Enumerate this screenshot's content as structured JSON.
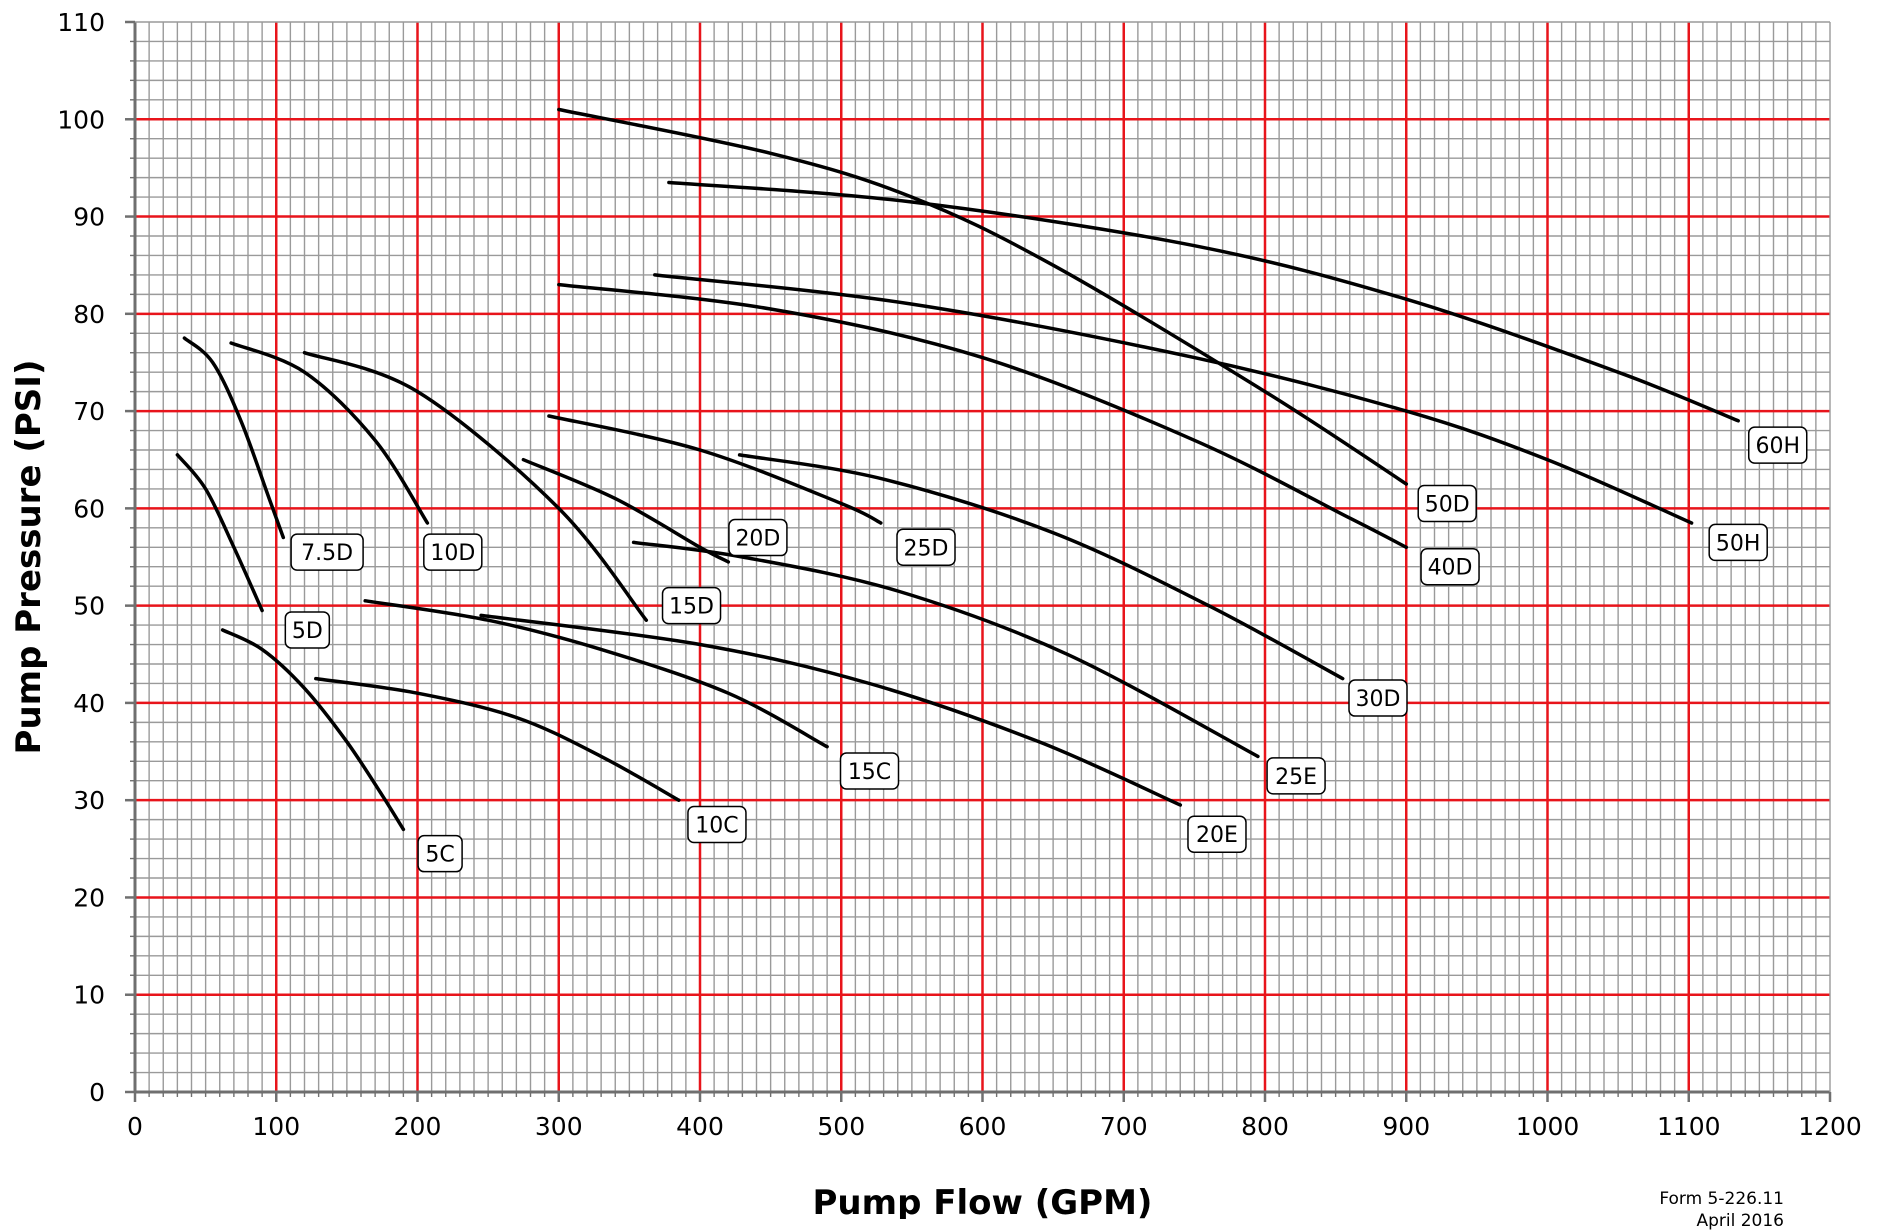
{
  "chart_data": {
    "type": "line",
    "xlabel": "Pump Flow (GPM)",
    "ylabel": "Pump Pressure (PSI)",
    "xlim": [
      0,
      1200
    ],
    "ylim": [
      0,
      110
    ],
    "x_ticks": [
      0,
      100,
      200,
      300,
      400,
      500,
      600,
      700,
      800,
      900,
      1000,
      1100,
      1200
    ],
    "y_ticks": [
      0,
      10,
      20,
      30,
      40,
      50,
      60,
      70,
      80,
      90,
      100,
      110
    ],
    "grid": true,
    "colors": {
      "major_grid": "#e8141b",
      "minor_grid": "#9a9a9a",
      "curve": "#000000"
    },
    "series": [
      {
        "name": "5C",
        "x": [
          62,
          90,
          120,
          150,
          175,
          190
        ],
        "y": [
          47.5,
          45.5,
          41.5,
          36,
          30.5,
          27
        ]
      },
      {
        "name": "10C",
        "x": [
          128,
          200,
          270,
          330,
          385
        ],
        "y": [
          42.5,
          41,
          38.5,
          34.5,
          30
        ]
      },
      {
        "name": "15C",
        "x": [
          163,
          250,
          330,
          420,
          490
        ],
        "y": [
          50.5,
          48.5,
          45.5,
          41,
          35.5
        ]
      },
      {
        "name": "20E",
        "x": [
          245,
          400,
          520,
          640,
          740
        ],
        "y": [
          49,
          46,
          42,
          36,
          29.5
        ]
      },
      {
        "name": "25E",
        "x": [
          353,
          430,
          540,
          660,
          795
        ],
        "y": [
          56.5,
          55,
          51.5,
          45,
          34.5
        ]
      },
      {
        "name": "30D",
        "x": [
          428,
          530,
          650,
          760,
          855
        ],
        "y": [
          65.5,
          63,
          57.5,
          50,
          42.5
        ]
      },
      {
        "name": "5D",
        "x": [
          30,
          50,
          70,
          90
        ],
        "y": [
          65.5,
          62,
          56,
          49.5
        ]
      },
      {
        "name": "7.5D",
        "x": [
          35,
          55,
          75,
          95,
          105
        ],
        "y": [
          77.5,
          75,
          69,
          61,
          57
        ]
      },
      {
        "name": "10D",
        "x": [
          68,
          120,
          170,
          207
        ],
        "y": [
          77,
          74,
          67,
          58.5
        ]
      },
      {
        "name": "15D",
        "x": [
          120,
          200,
          300,
          362
        ],
        "y": [
          76,
          72,
          60,
          48.5
        ]
      },
      {
        "name": "20D",
        "x": [
          275,
          340,
          400,
          420
        ],
        "y": [
          65,
          61,
          56,
          54.5
        ]
      },
      {
        "name": "25D",
        "x": [
          293,
          400,
          500,
          528
        ],
        "y": [
          69.5,
          66,
          60.5,
          58.5
        ]
      },
      {
        "name": "40D",
        "x": [
          300,
          450,
          600,
          750,
          860,
          900
        ],
        "y": [
          83,
          80.5,
          75.5,
          67,
          59,
          56
        ]
      },
      {
        "name": "50D",
        "x": [
          300,
          450,
          550,
          650,
          800,
          900
        ],
        "y": [
          101,
          96.5,
          92,
          85,
          72,
          62.5
        ]
      },
      {
        "name": "50H",
        "x": [
          368,
          550,
          750,
          900,
          1000,
          1102
        ],
        "y": [
          84,
          81,
          75.5,
          70,
          65,
          58.5
        ]
      },
      {
        "name": "60H",
        "x": [
          378,
          550,
          750,
          900,
          1050,
          1135
        ],
        "y": [
          93.5,
          91.5,
          87,
          81.5,
          74,
          69
        ]
      }
    ],
    "labels": [
      {
        "text": "5C",
        "x": 216,
        "y": 24.5
      },
      {
        "text": "10C",
        "x": 412,
        "y": 27.5
      },
      {
        "text": "15C",
        "x": 520,
        "y": 33
      },
      {
        "text": "20E",
        "x": 766,
        "y": 26.5
      },
      {
        "text": "25E",
        "x": 822,
        "y": 32.5
      },
      {
        "text": "30D",
        "x": 880,
        "y": 40.5
      },
      {
        "text": "5D",
        "x": 122,
        "y": 47.5
      },
      {
        "text": "7.5D",
        "x": 136,
        "y": 55.5
      },
      {
        "text": "10D",
        "x": 225,
        "y": 55.5
      },
      {
        "text": "15D",
        "x": 394,
        "y": 50
      },
      {
        "text": "20D",
        "x": 441,
        "y": 57
      },
      {
        "text": "25D",
        "x": 560,
        "y": 56
      },
      {
        "text": "40D",
        "x": 931,
        "y": 54
      },
      {
        "text": "50D",
        "x": 929,
        "y": 60.5
      },
      {
        "text": "50H",
        "x": 1135,
        "y": 56.5
      },
      {
        "text": "60H",
        "x": 1163,
        "y": 66.5
      }
    ]
  },
  "footer": {
    "form": "Form 5-226.11",
    "date": "April 2016"
  }
}
